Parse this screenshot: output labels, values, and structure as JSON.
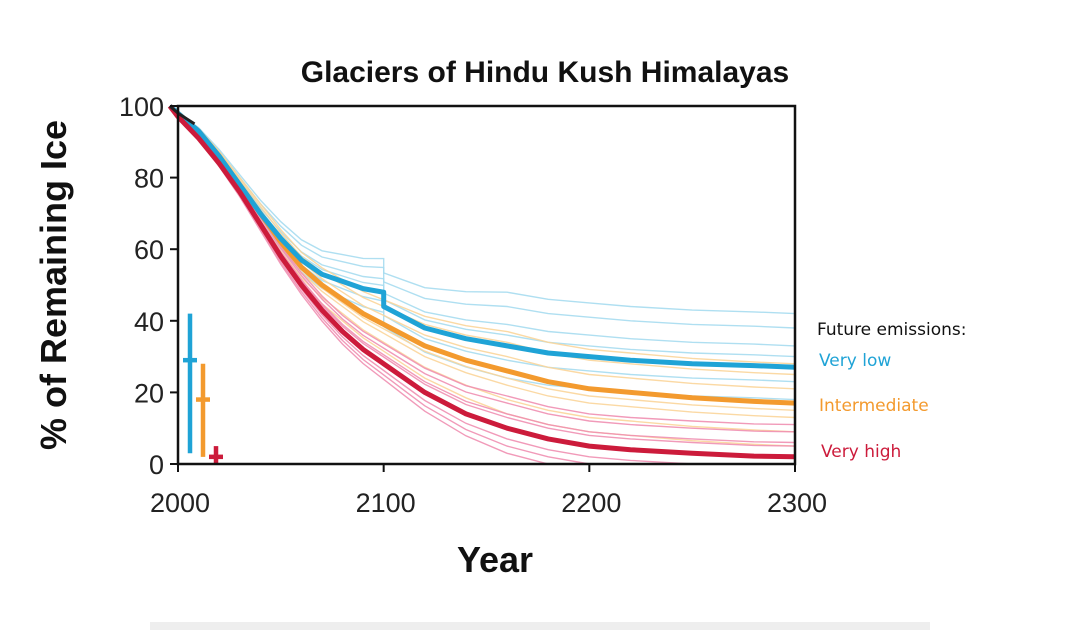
{
  "chart_data": {
    "type": "line",
    "title": "Glaciers of Hindu Kush Himalayas",
    "xlabel": "Year",
    "ylabel": "% of Remaining Ice",
    "xlim": [
      2000,
      2300
    ],
    "ylim": [
      0,
      100
    ],
    "x_ticks": [
      "2000",
      "2100",
      "2200",
      "2300"
    ],
    "y_ticks": [
      "0",
      "20",
      "40",
      "60",
      "80",
      "100"
    ],
    "grid": false,
    "legend": {
      "title": "Future emissions:",
      "placement": "right",
      "entries": [
        {
          "label": "Very low",
          "color": "#1fa3d6"
        },
        {
          "label": "Intermediate",
          "color": "#f39a2e"
        },
        {
          "label": "Very high",
          "color": "#cc1b3b"
        }
      ]
    },
    "series": [
      {
        "name": "Very low",
        "color": "#1fa3d6",
        "x": [
          1995,
          2000,
          2010,
          2020,
          2030,
          2040,
          2050,
          2060,
          2070,
          2080,
          2090,
          2100,
          2100,
          2110,
          2120,
          2140,
          2160,
          2180,
          2200,
          2220,
          2250,
          2280,
          2300
        ],
        "y": [
          100,
          98,
          93,
          86,
          78,
          70,
          63,
          57,
          53,
          51,
          49,
          48,
          44,
          41,
          38,
          35,
          33,
          31,
          30,
          29,
          28,
          27.5,
          27
        ],
        "range_at_2100": {
          "mean": 29,
          "min": 3,
          "max": 42
        }
      },
      {
        "name": "Intermediate",
        "color": "#f39a2e",
        "x": [
          1995,
          2000,
          2010,
          2020,
          2030,
          2040,
          2050,
          2060,
          2070,
          2080,
          2090,
          2100,
          2110,
          2120,
          2140,
          2160,
          2180,
          2200,
          2220,
          2250,
          2280,
          2300
        ],
        "y": [
          100,
          98,
          93,
          86,
          78,
          70,
          62,
          55,
          50,
          46,
          42,
          39,
          36,
          33,
          29,
          26,
          23,
          21,
          20,
          18.5,
          17.5,
          17
        ],
        "range_at_2100": {
          "mean": 18,
          "min": 2,
          "max": 28
        }
      },
      {
        "name": "Very high",
        "color": "#cc1b3b",
        "x": [
          1995,
          2000,
          2010,
          2020,
          2030,
          2040,
          2050,
          2060,
          2070,
          2080,
          2090,
          2100,
          2110,
          2120,
          2140,
          2160,
          2180,
          2200,
          2220,
          2250,
          2280,
          2300
        ],
        "y": [
          100,
          97,
          91,
          84,
          76,
          67,
          58,
          50,
          43,
          37,
          32,
          28,
          24,
          20,
          14,
          10,
          7,
          5,
          4,
          3,
          2.2,
          2
        ],
        "range_at_2100": {
          "mean": 2,
          "min": 0,
          "max": 5
        }
      }
    ]
  },
  "background_model_colors": {
    "very_low": "#a6dcef",
    "intermediate": "#fbd59a",
    "very_high": "#f08fb1"
  },
  "pre_2000_line_color": "#222222"
}
